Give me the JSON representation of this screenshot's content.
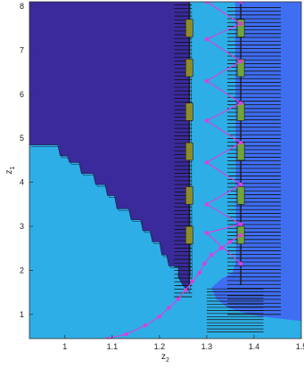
{
  "chart_data": {
    "type": "heatmap",
    "title": "",
    "xlabel": "z2",
    "ylabel": "z1",
    "xlim": [
      0.925,
      1.5
    ],
    "ylim": [
      0.45,
      8.1
    ],
    "xticks": [
      1,
      1.1,
      1.2,
      1.3,
      1.4,
      1.5
    ],
    "xtick_labels": [
      "1",
      "1.1",
      "1.2",
      "1.3",
      "1.4",
      "1.5"
    ],
    "yticks": [
      1,
      2,
      3,
      4,
      5,
      6,
      7,
      8
    ],
    "ytick_labels": [
      "1",
      "2",
      "3",
      "4",
      "5",
      "6",
      "7",
      "8"
    ],
    "grid": false,
    "colors": {
      "region_dark": "#3b2a9c",
      "region_light": "#2eaee6",
      "region_blue": "#3f6ef2",
      "marker": "#e03ce0",
      "stripe_green": "#6fa63a",
      "stripe_olive": "#8c8c2a",
      "mesh": "#111111"
    },
    "dark_region_boundary": [
      [
        0.925,
        4.85
      ],
      [
        0.985,
        4.85
      ],
      [
        0.99,
        4.6
      ],
      [
        1.005,
        4.6
      ],
      [
        1.01,
        4.45
      ],
      [
        1.03,
        4.45
      ],
      [
        1.035,
        4.2
      ],
      [
        1.06,
        4.2
      ],
      [
        1.065,
        3.95
      ],
      [
        1.085,
        3.95
      ],
      [
        1.09,
        3.7
      ],
      [
        1.105,
        3.7
      ],
      [
        1.11,
        3.4
      ],
      [
        1.135,
        3.4
      ],
      [
        1.14,
        3.15
      ],
      [
        1.16,
        3.15
      ],
      [
        1.165,
        2.9
      ],
      [
        1.18,
        2.9
      ],
      [
        1.185,
        2.65
      ],
      [
        1.2,
        2.65
      ],
      [
        1.205,
        2.35
      ],
      [
        1.215,
        2.35
      ],
      [
        1.22,
        2.1
      ],
      [
        1.24,
        2.1
      ],
      [
        1.24,
        1.85
      ],
      [
        1.25,
        1.65
      ],
      [
        1.26,
        1.55
      ],
      [
        1.265,
        1.9
      ],
      [
        1.262,
        8.1
      ]
    ],
    "light_region_right_edge": [
      [
        1.36,
        8.1
      ],
      [
        1.362,
        2.2
      ],
      [
        1.355,
        1.95
      ],
      [
        1.33,
        1.8
      ],
      [
        1.31,
        1.6
      ],
      [
        1.32,
        1.35
      ],
      [
        1.345,
        1.15
      ],
      [
        1.39,
        1.0
      ],
      [
        1.44,
        0.92
      ],
      [
        1.5,
        0.85
      ]
    ],
    "vertical_stripes_x": [
      1.263,
      1.372
    ],
    "stripe_segments_z1": [
      [
        7.3,
        7.7
      ],
      [
        6.4,
        6.8
      ],
      [
        5.4,
        5.8
      ],
      [
        4.5,
        4.9
      ],
      [
        3.5,
        3.9
      ],
      [
        2.6,
        3.0
      ]
    ],
    "series": [
      {
        "type": "line",
        "x": [
          1.09,
          1.13,
          1.17,
          1.2,
          1.22,
          1.24,
          1.255,
          1.27,
          1.285,
          1.295,
          1.31,
          1.33,
          1.35,
          1.372
        ],
        "y": [
          0.45,
          0.55,
          0.75,
          0.95,
          1.15,
          1.35,
          1.55,
          1.75,
          1.95,
          2.15,
          2.35,
          2.5,
          2.65,
          2.8
        ]
      },
      {
        "type": "zigzag",
        "x": [
          1.372,
          1.3,
          1.372,
          1.3,
          1.372,
          1.3,
          1.372,
          1.3,
          1.372,
          1.3,
          1.372,
          1.3,
          1.372,
          1.3,
          1.372,
          1.3,
          1.372,
          1.3,
          1.372
        ],
        "y": [
          2.15,
          2.85,
          3.05,
          3.5,
          3.95,
          4.45,
          4.9,
          5.4,
          5.8,
          6.3,
          6.75,
          7.25,
          7.6,
          8.1,
          8.1,
          8.1,
          8.1,
          8.1,
          8.1
        ]
      }
    ]
  }
}
